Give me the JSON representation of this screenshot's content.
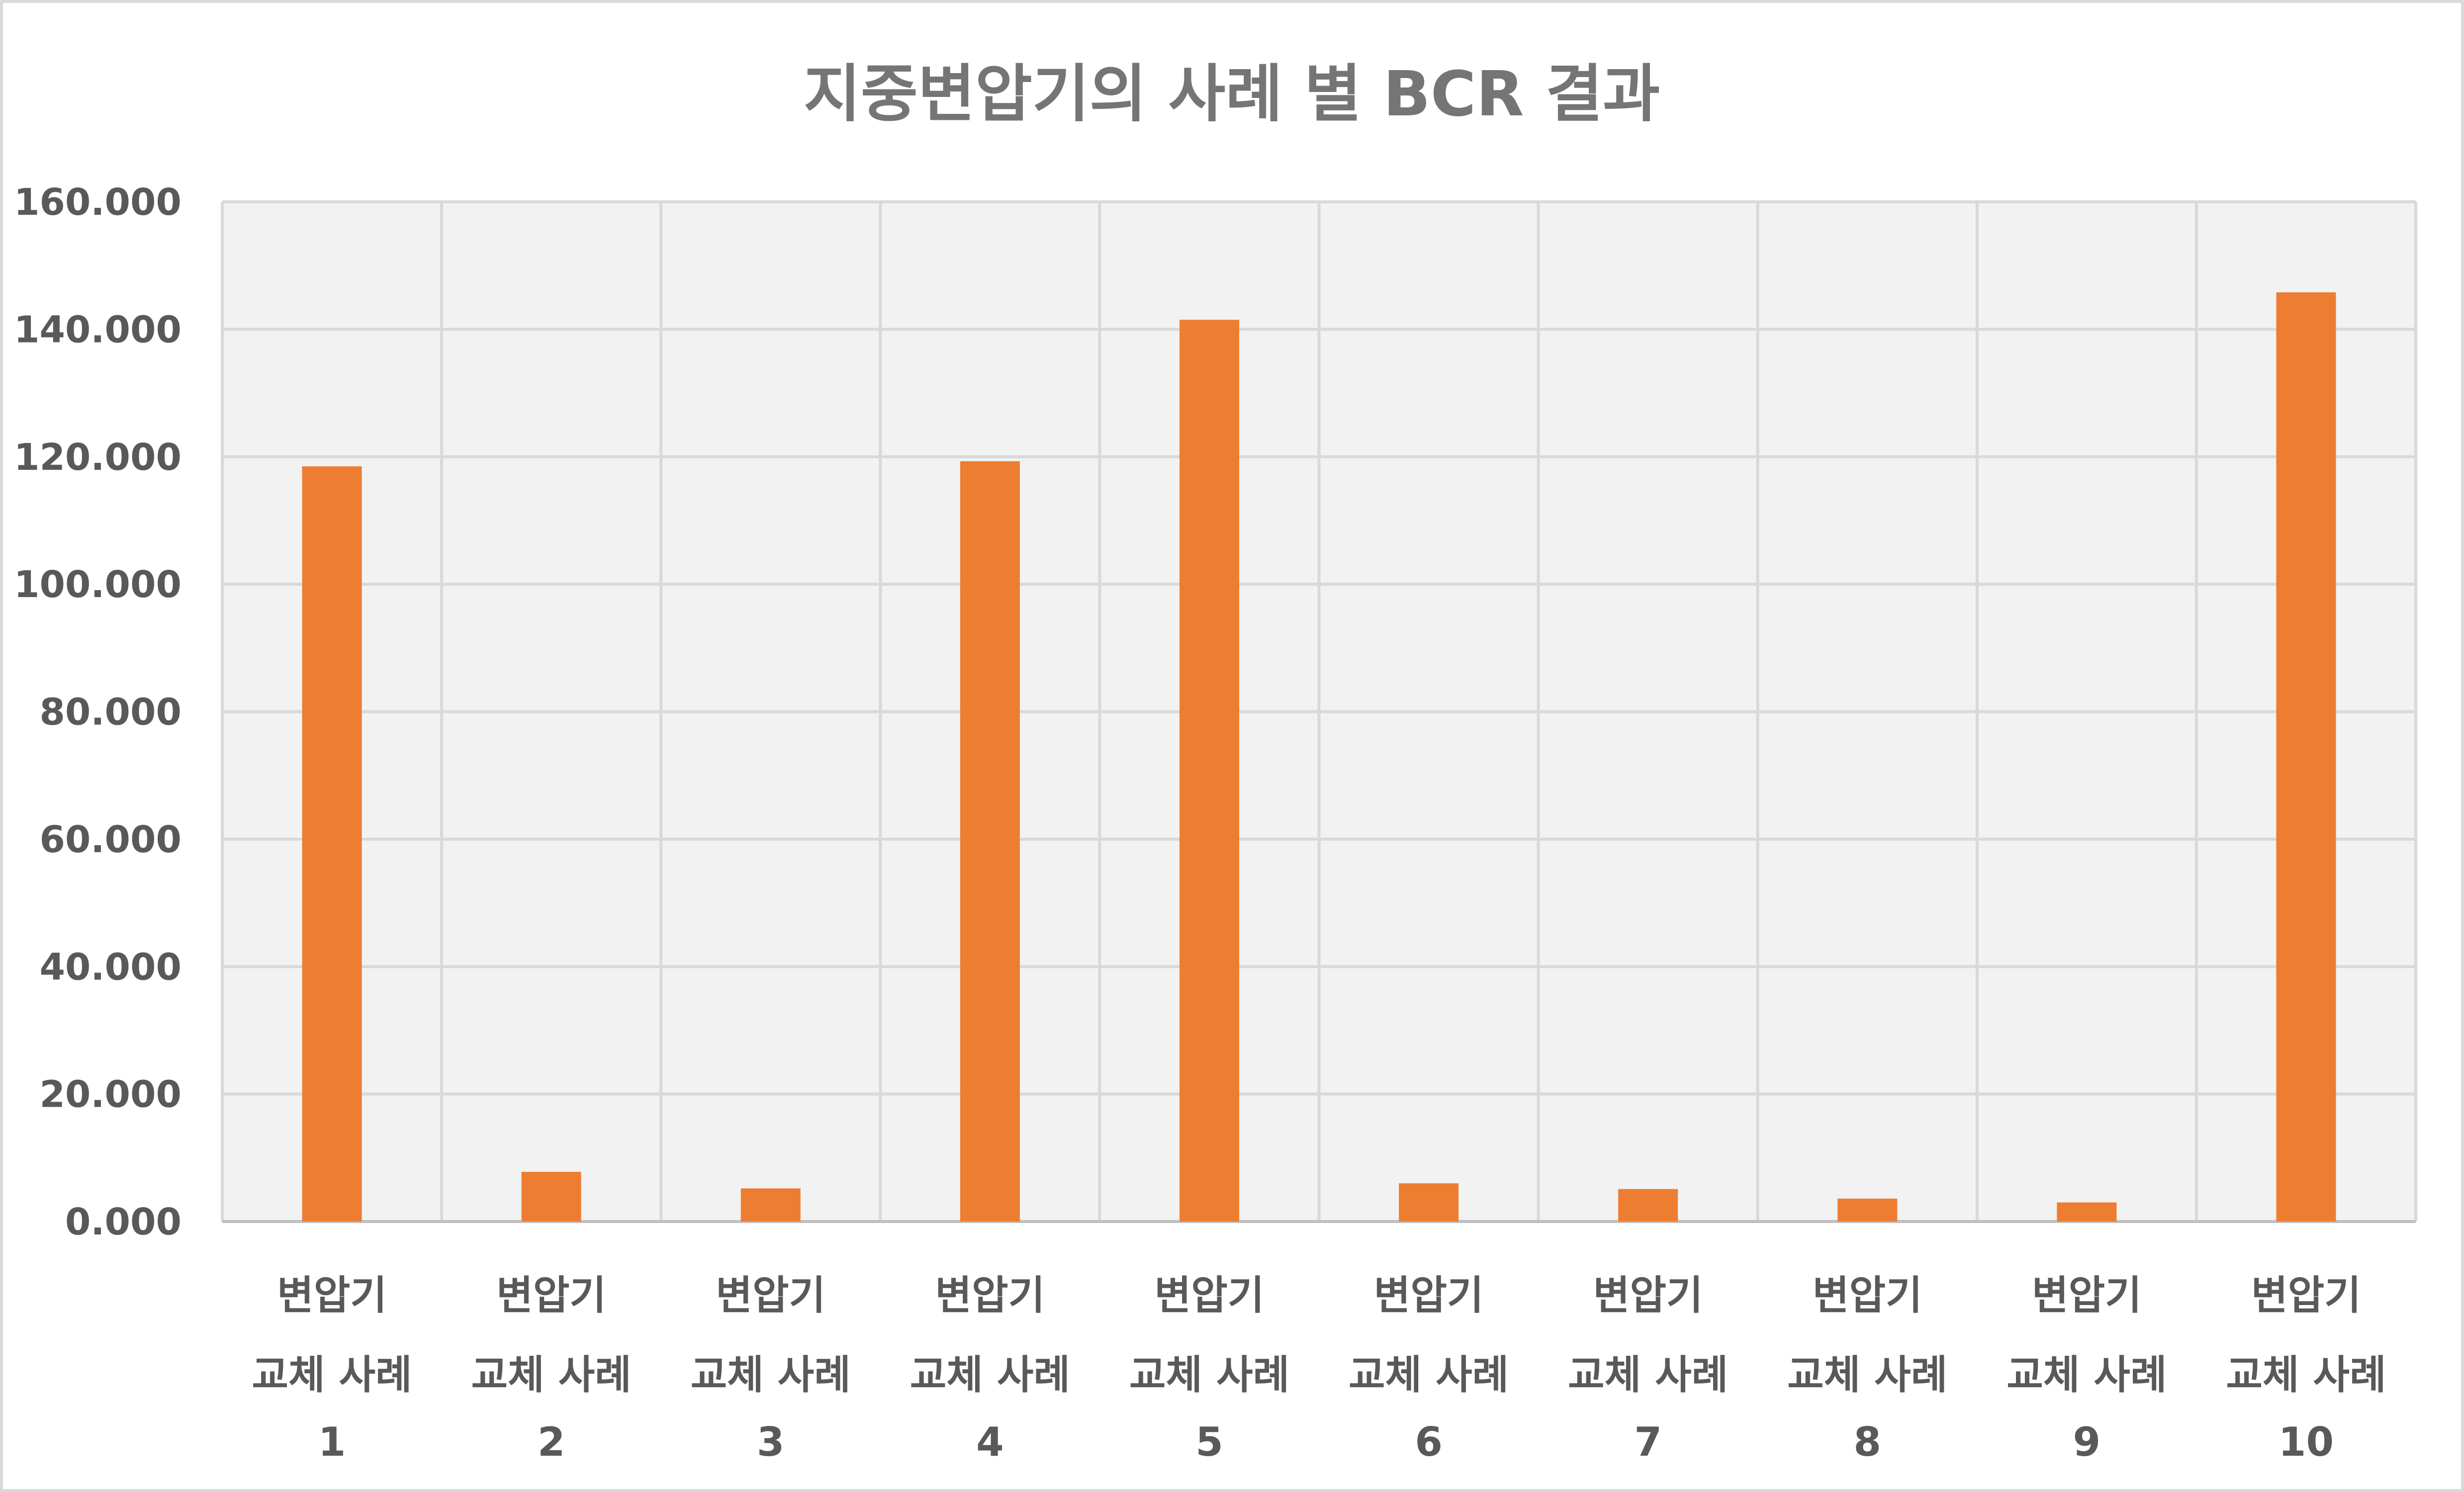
{
  "chart_data": {
    "type": "bar",
    "title": "지중변압기의 사례 별 BCR 결과",
    "xlabel": "",
    "ylabel": "",
    "categories": [
      [
        "변압기",
        "교체 사례",
        "1"
      ],
      [
        "변압기",
        "교체 사례",
        "2"
      ],
      [
        "변압기",
        "교체 사례",
        "3"
      ],
      [
        "변압기",
        "교체 사례",
        "4"
      ],
      [
        "변압기",
        "교체 사례",
        "5"
      ],
      [
        "변압기",
        "교체 사례",
        "6"
      ],
      [
        "변압기",
        "교체 사례",
        "7"
      ],
      [
        "변압기",
        "교체 사례",
        "8"
      ],
      [
        "변압기",
        "교체 사례",
        "9"
      ],
      [
        "변압기",
        "교체 사례",
        "10"
      ]
    ],
    "values": [
      118.5,
      7.8,
      5.2,
      119.3,
      141.5,
      6.0,
      5.1,
      3.6,
      3.0,
      145.8
    ],
    "ylim": [
      0,
      160
    ],
    "yticks": [
      "0.000",
      "20.000",
      "40.000",
      "60.000",
      "80.000",
      "100.000",
      "120.000",
      "140.000",
      "160.000"
    ],
    "grid": true,
    "legend": "none",
    "colors": {
      "bar": "#ed7d31",
      "plot_background": "#f2f2f2",
      "grid": "#d9d9d9",
      "title": "#757575",
      "tick_text": "#595959"
    }
  }
}
